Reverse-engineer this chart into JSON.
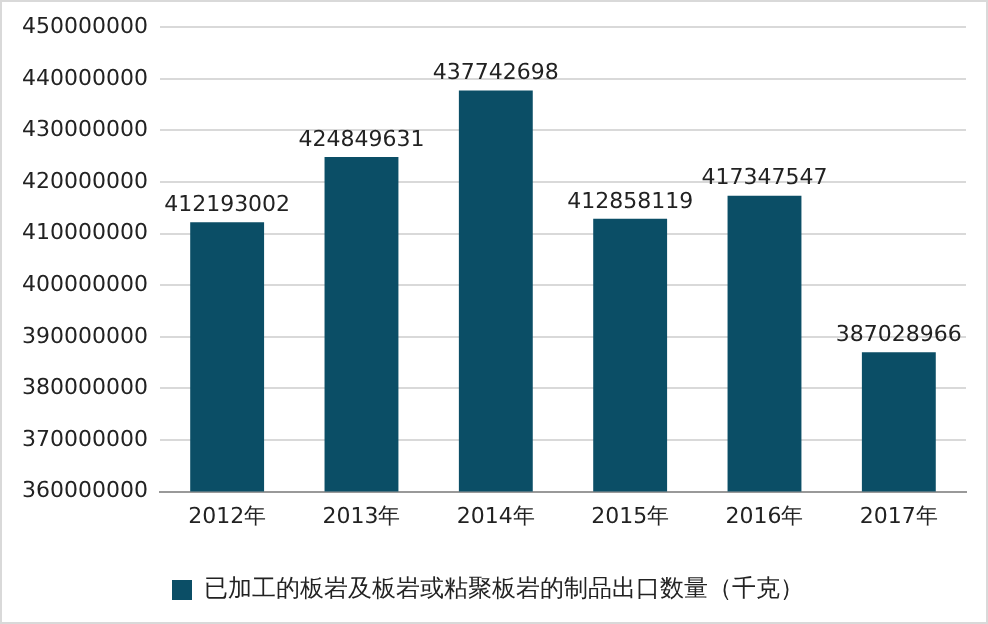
{
  "chart_data": {
    "type": "bar",
    "categories": [
      "2012年",
      "2013年",
      "2014年",
      "2015年",
      "2016年",
      "2017年"
    ],
    "series": [
      {
        "name": "已加工的板岩及板岩或粘聚板岩的制品出口数量（千克）",
        "color": "#0b4e66",
        "values": [
          412193002,
          424849631,
          437742698,
          412858119,
          417347547,
          387028966
        ]
      }
    ],
    "ylim": [
      360000000,
      450000000
    ],
    "yticks": [
      360000000,
      370000000,
      380000000,
      390000000,
      400000000,
      410000000,
      420000000,
      430000000,
      440000000,
      450000000
    ],
    "grid": "y",
    "legend": "bottom",
    "data_labels": true
  }
}
